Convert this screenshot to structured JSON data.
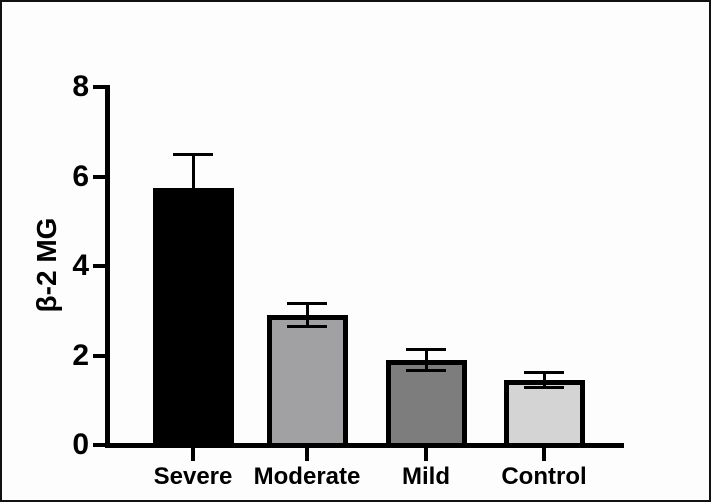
{
  "figure": {
    "background_color": "#fdfdfd",
    "frame_color": "#111111"
  },
  "chart_data": {
    "type": "bar",
    "title": "",
    "xlabel": "",
    "ylabel": "β-2 MG",
    "categories": [
      "Severe",
      "Moderate",
      "Mild",
      "Control"
    ],
    "values": [
      5.75,
      2.9,
      1.9,
      1.45
    ],
    "error_sd": [
      0.75,
      0.26,
      0.24,
      0.16
    ],
    "bar_colors": [
      "#000000",
      "#a1a1a4",
      "#7d7d7d",
      "#d4d4d4"
    ],
    "bar_border_color": "#000000",
    "axis_color": "#000000",
    "ylim": [
      0,
      8
    ],
    "yticks": [
      0,
      2,
      4,
      6,
      8
    ],
    "grid": false,
    "legend_position": "none",
    "error_bar_style": "mean plus-minus SD with caps above and below"
  }
}
